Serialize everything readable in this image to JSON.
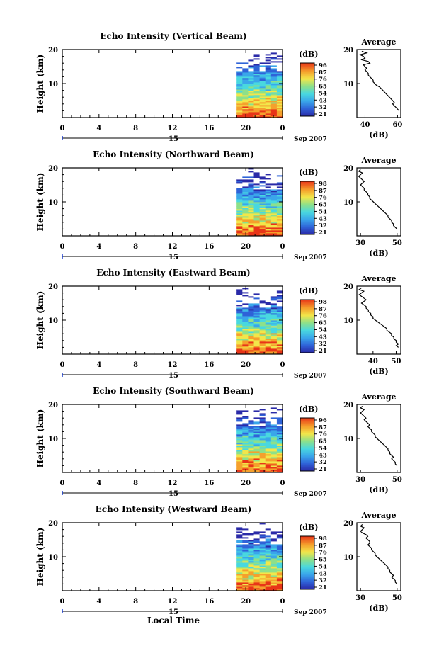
{
  "figure": {
    "xlabel": "Local Time",
    "ylabel": "Height (km)",
    "date_label": "Sep 2007",
    "day_label": "15",
    "avg_title": "Average",
    "avg_xlabel": "(dB)",
    "cbar_unit": "(dB)",
    "x_ticks": [
      "0",
      "4",
      "8",
      "12",
      "16",
      "20",
      "0"
    ],
    "y_ticks": [
      "20",
      "10"
    ],
    "colors": {
      "ink": "#000000",
      "night_marker": "#1c3fd0"
    }
  },
  "chart_data": [
    {
      "type": "heatmap",
      "title": "Echo Intensity (Vertical Beam)",
      "x_range_hours": [
        0,
        24
      ],
      "data_start_hour": 19,
      "ylim_km": [
        0,
        20
      ],
      "cbar_ticks": [
        "96",
        "87",
        "76",
        "65",
        "54",
        "43",
        "32",
        "21"
      ],
      "avg_xticks": [
        "40",
        "60"
      ],
      "avg_xlim": [
        35,
        62
      ],
      "avg_profile": {
        "height_km": [
          19.5,
          19,
          18.5,
          18,
          17.5,
          17,
          16.5,
          16,
          15.5,
          15,
          14.5,
          14,
          13.5,
          13,
          12.5,
          12,
          11.5,
          11,
          10.5,
          10,
          9.5,
          9,
          8.5,
          8,
          7.5,
          7,
          6.5,
          6,
          5.5,
          5,
          4.5,
          4,
          3.5,
          3,
          2.5,
          2
        ],
        "db": [
          38,
          41,
          37,
          39,
          40,
          38,
          42,
          43,
          39,
          40,
          41,
          40,
          41,
          42,
          42,
          43,
          44,
          45,
          45,
          46,
          47,
          49,
          50,
          51,
          52,
          53,
          54,
          55,
          56,
          57,
          58,
          57,
          58,
          59,
          60,
          61
        ]
      }
    },
    {
      "type": "heatmap",
      "title": "Echo Intensity (Northward Beam)",
      "x_range_hours": [
        0,
        24
      ],
      "data_start_hour": 19,
      "ylim_km": [
        0,
        20
      ],
      "cbar_ticks": [
        "98",
        "87",
        "76",
        "65",
        "54",
        "43",
        "32",
        "21"
      ],
      "avg_xticks": [
        "30",
        "50"
      ],
      "avg_xlim": [
        28,
        52
      ],
      "avg_profile": {
        "height_km": [
          19.5,
          19,
          18.5,
          18,
          17.5,
          17,
          16.5,
          16,
          15.5,
          15,
          14.5,
          14,
          13.5,
          13,
          12.5,
          12,
          11.5,
          11,
          10.5,
          10,
          9.5,
          9,
          8.5,
          8,
          7.5,
          7,
          6.5,
          6,
          5.5,
          5,
          4.5,
          4,
          3.5,
          3,
          2.5,
          2
        ],
        "db": [
          30,
          29,
          31,
          30,
          29,
          30,
          31,
          32,
          31,
          30,
          31,
          32,
          32,
          33,
          34,
          34,
          35,
          35,
          36,
          37,
          38,
          39,
          40,
          41,
          42,
          43,
          44,
          45,
          45,
          46,
          47,
          47,
          48,
          48,
          49,
          50
        ]
      }
    },
    {
      "type": "heatmap",
      "title": "Echo Intensity (Eastward Beam)",
      "x_range_hours": [
        0,
        24
      ],
      "data_start_hour": 19,
      "ylim_km": [
        0,
        20
      ],
      "cbar_ticks": [
        "98",
        "87",
        "76",
        "65",
        "54",
        "43",
        "32",
        "21"
      ],
      "avg_xticks": [
        "40",
        "50"
      ],
      "avg_xlim": [
        33,
        52
      ],
      "avg_profile": {
        "height_km": [
          19.5,
          19,
          18.5,
          18,
          17.5,
          17,
          16.5,
          16,
          15.5,
          15,
          14.5,
          14,
          13.5,
          13,
          12.5,
          12,
          11.5,
          11,
          10.5,
          10,
          9.5,
          9,
          8.5,
          8,
          7.5,
          7,
          6.5,
          6,
          5.5,
          5,
          4.5,
          4,
          3.5,
          3,
          2.5,
          2
        ],
        "db": [
          35,
          34,
          36,
          35,
          34,
          35,
          36,
          37,
          36,
          35,
          36,
          37,
          37,
          38,
          38,
          39,
          39,
          40,
          40,
          41,
          42,
          43,
          44,
          45,
          46,
          46,
          47,
          48,
          48,
          49,
          49,
          50,
          50,
          51,
          50,
          51
        ]
      }
    },
    {
      "type": "heatmap",
      "title": "Echo Intensity (Southward Beam)",
      "x_range_hours": [
        0,
        24
      ],
      "data_start_hour": 19,
      "ylim_km": [
        0,
        20
      ],
      "cbar_ticks": [
        "96",
        "87",
        "76",
        "65",
        "54",
        "43",
        "32",
        "21"
      ],
      "avg_xticks": [
        "30",
        "50"
      ],
      "avg_xlim": [
        28,
        52
      ],
      "avg_profile": {
        "height_km": [
          19.5,
          19,
          18.5,
          18,
          17.5,
          17,
          16.5,
          16,
          15.5,
          15,
          14.5,
          14,
          13.5,
          13,
          12.5,
          12,
          11.5,
          11,
          10.5,
          10,
          9.5,
          9,
          8.5,
          8,
          7.5,
          7,
          6.5,
          6,
          5.5,
          5,
          4.5,
          4,
          3.5,
          3,
          2.5,
          2
        ],
        "db": [
          31,
          30,
          32,
          31,
          30,
          31,
          32,
          33,
          32,
          33,
          34,
          35,
          34,
          35,
          36,
          36,
          37,
          38,
          38,
          39,
          40,
          41,
          42,
          43,
          44,
          45,
          45,
          46,
          46,
          47,
          48,
          47,
          48,
          49,
          49,
          50
        ]
      }
    },
    {
      "type": "heatmap",
      "title": "Echo Intensity (Westward Beam)",
      "x_range_hours": [
        0,
        24
      ],
      "data_start_hour": 19,
      "ylim_km": [
        0,
        20
      ],
      "cbar_ticks": [
        "98",
        "87",
        "76",
        "65",
        "54",
        "43",
        "32",
        "21"
      ],
      "avg_xticks": [
        "30",
        "50"
      ],
      "avg_xlim": [
        28,
        52
      ],
      "avg_profile": {
        "height_km": [
          19.5,
          19,
          18.5,
          18,
          17.5,
          17,
          16.5,
          16,
          15.5,
          15,
          14.5,
          14,
          13.5,
          13,
          12.5,
          12,
          11.5,
          11,
          10.5,
          10,
          9.5,
          9,
          8.5,
          8,
          7.5,
          7,
          6.5,
          6,
          5.5,
          5,
          4.5,
          4,
          3.5,
          3,
          2.5,
          2
        ],
        "db": [
          31,
          30,
          32,
          31,
          30,
          31,
          33,
          34,
          33,
          34,
          35,
          35,
          34,
          35,
          36,
          36,
          37,
          38,
          38,
          39,
          40,
          41,
          42,
          43,
          44,
          45,
          45,
          46,
          46,
          47,
          48,
          47,
          48,
          49,
          49,
          50
        ]
      }
    }
  ]
}
